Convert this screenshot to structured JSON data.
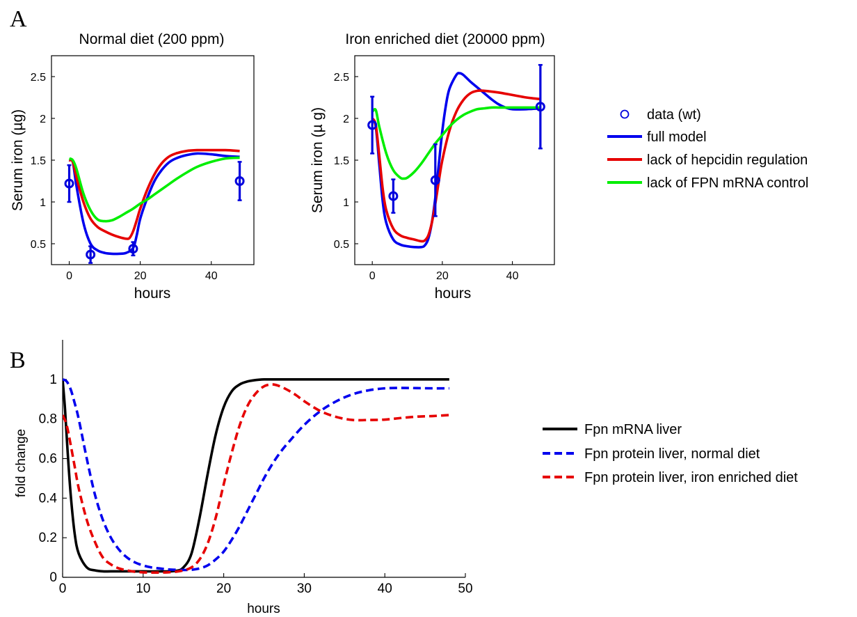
{
  "panel_letters": [
    "A",
    "B"
  ],
  "colors": {
    "data": "#0000dd",
    "full_model": "#0000ee",
    "lack_hepcidin": "#e60000",
    "lack_fpn": "#00ee00",
    "mrna": "#000000",
    "protein_normal": "#0000ee",
    "protein_iron": "#e60000"
  },
  "legend_A": [
    "data (wt)",
    "full model",
    "lack of hepcidin regulation",
    "lack of FPN mRNA control"
  ],
  "legend_B": [
    "Fpn mRNA liver",
    "Fpn protein liver, normal diet",
    "Fpn protein liver, iron enriched diet"
  ],
  "chart_data": [
    {
      "type": "line",
      "panel": "A",
      "title": "Normal diet (200 ppm)",
      "xlabel": "hours",
      "ylabel": "Serum iron (µg)",
      "xlim": [
        -5,
        52
      ],
      "ylim": [
        0.25,
        2.75
      ],
      "xticks": [
        "0",
        "20",
        "40"
      ],
      "xtick_values": [
        0,
        20,
        40
      ],
      "yticks": [
        "0.5",
        "1",
        "1.5",
        "2",
        "2.5"
      ],
      "ytick_values": [
        0.5,
        1,
        1.5,
        2,
        2.5
      ],
      "grid": false,
      "series": [
        {
          "name": "data (wt)",
          "kind": "errorbar",
          "x": [
            0,
            6,
            18,
            48
          ],
          "y": [
            1.22,
            0.37,
            0.44,
            1.25
          ],
          "err": [
            0.22,
            0.1,
            0.08,
            0.23
          ]
        },
        {
          "name": "full model",
          "kind": "line",
          "x": [
            0,
            1,
            2,
            4,
            6,
            8,
            10,
            12,
            14,
            16,
            18,
            19,
            20,
            22,
            24,
            26,
            28,
            30,
            33,
            36,
            40,
            44,
            48
          ],
          "y": [
            1.5,
            1.48,
            1.2,
            0.75,
            0.5,
            0.42,
            0.39,
            0.38,
            0.38,
            0.39,
            0.45,
            0.6,
            0.8,
            1.05,
            1.25,
            1.38,
            1.47,
            1.52,
            1.56,
            1.58,
            1.57,
            1.55,
            1.54
          ]
        },
        {
          "name": "lack of hepcidin regulation",
          "kind": "line",
          "x": [
            0,
            1,
            2,
            4,
            6,
            8,
            10,
            12,
            14,
            16,
            17,
            18,
            19,
            20,
            22,
            24,
            26,
            28,
            30,
            33,
            36,
            40,
            44,
            48
          ],
          "y": [
            1.5,
            1.48,
            1.3,
            1.0,
            0.8,
            0.7,
            0.65,
            0.61,
            0.58,
            0.56,
            0.57,
            0.65,
            0.78,
            0.92,
            1.15,
            1.33,
            1.46,
            1.54,
            1.58,
            1.61,
            1.62,
            1.62,
            1.62,
            1.61
          ]
        },
        {
          "name": "lack of FPN mRNA control",
          "kind": "line",
          "x": [
            0,
            1,
            2,
            4,
            6,
            8,
            10,
            12,
            14,
            16,
            18,
            20,
            22,
            24,
            26,
            28,
            30,
            33,
            36,
            40,
            44,
            48
          ],
          "y": [
            1.52,
            1.5,
            1.4,
            1.1,
            0.9,
            0.79,
            0.77,
            0.78,
            0.82,
            0.87,
            0.92,
            0.98,
            1.03,
            1.09,
            1.15,
            1.21,
            1.27,
            1.35,
            1.42,
            1.48,
            1.52,
            1.53
          ]
        }
      ]
    },
    {
      "type": "line",
      "panel": "A",
      "title": "Iron enriched diet (20000 ppm)",
      "xlabel": "hours",
      "ylabel": "Serum iron (µ g)",
      "xlim": [
        -5,
        52
      ],
      "ylim": [
        0.25,
        2.75
      ],
      "xticks": [
        "0",
        "20",
        "40"
      ],
      "xtick_values": [
        0,
        20,
        40
      ],
      "yticks": [
        "0.5",
        "1",
        "1.5",
        "2",
        "2.5"
      ],
      "ytick_values": [
        0.5,
        1,
        1.5,
        2,
        2.5
      ],
      "grid": false,
      "series": [
        {
          "name": "data (wt)",
          "kind": "errorbar",
          "x": [
            0,
            6,
            18,
            48
          ],
          "y": [
            1.92,
            1.07,
            1.26,
            2.14
          ],
          "err": [
            0.34,
            0.2,
            0.43,
            0.5
          ]
        },
        {
          "name": "full model",
          "kind": "line",
          "x": [
            0,
            1,
            2,
            3,
            4,
            6,
            8,
            10,
            12,
            14,
            15,
            16,
            17,
            18,
            19,
            20,
            21,
            22,
            24,
            25,
            26,
            28,
            30,
            32,
            34,
            36,
            38,
            40,
            44,
            48
          ],
          "y": [
            2.0,
            1.9,
            1.45,
            1.0,
            0.75,
            0.55,
            0.49,
            0.47,
            0.46,
            0.46,
            0.48,
            0.56,
            0.75,
            1.05,
            1.45,
            1.85,
            2.15,
            2.35,
            2.52,
            2.54,
            2.52,
            2.44,
            2.37,
            2.3,
            2.23,
            2.17,
            2.13,
            2.11,
            2.11,
            2.12
          ]
        },
        {
          "name": "lack of hepcidin regulation",
          "kind": "line",
          "x": [
            0,
            1,
            2,
            3,
            4,
            6,
            8,
            10,
            12,
            14,
            15,
            16,
            17,
            18,
            19,
            20,
            22,
            24,
            26,
            28,
            30,
            32,
            36,
            40,
            44,
            48
          ],
          "y": [
            2.0,
            1.92,
            1.55,
            1.15,
            0.9,
            0.68,
            0.6,
            0.57,
            0.55,
            0.53,
            0.54,
            0.6,
            0.75,
            0.98,
            1.25,
            1.5,
            1.85,
            2.08,
            2.22,
            2.3,
            2.33,
            2.33,
            2.31,
            2.28,
            2.25,
            2.23
          ]
        },
        {
          "name": "lack of FPN mRNA control",
          "kind": "line",
          "x": [
            0,
            1,
            2,
            4,
            6,
            8,
            9,
            10,
            12,
            14,
            16,
            18,
            20,
            22,
            24,
            26,
            28,
            30,
            32,
            34,
            36,
            38,
            40,
            44,
            48
          ],
          "y": [
            2.08,
            2.1,
            1.9,
            1.58,
            1.38,
            1.29,
            1.28,
            1.29,
            1.36,
            1.46,
            1.58,
            1.7,
            1.8,
            1.9,
            1.98,
            2.04,
            2.08,
            2.11,
            2.12,
            2.13,
            2.13,
            2.13,
            2.13,
            2.13,
            2.13
          ]
        }
      ]
    },
    {
      "type": "line",
      "panel": "B",
      "title": "",
      "xlabel": "hours",
      "ylabel": "fold change",
      "xlim": [
        0,
        50
      ],
      "ylim": [
        0,
        1.2
      ],
      "xticks": [
        "0",
        "10",
        "20",
        "30",
        "40",
        "50"
      ],
      "xtick_values": [
        0,
        10,
        20,
        30,
        40,
        50
      ],
      "yticks": [
        "0",
        "0.2",
        "0.4",
        "0.6",
        "0.8",
        "1"
      ],
      "ytick_values": [
        0,
        0.2,
        0.4,
        0.6,
        0.8,
        1
      ],
      "grid": false,
      "series": [
        {
          "name": "Fpn mRNA liver",
          "kind": "line",
          "dash": false,
          "x": [
            0,
            0.3,
            0.6,
            1,
            1.5,
            2,
            3,
            4,
            5,
            6,
            8,
            10,
            12,
            14,
            15,
            16,
            17,
            18,
            19,
            20,
            21,
            22,
            23,
            24,
            25,
            26,
            28,
            30,
            35,
            40,
            45,
            48
          ],
          "y": [
            1.0,
            0.85,
            0.65,
            0.42,
            0.22,
            0.12,
            0.05,
            0.035,
            0.03,
            0.03,
            0.03,
            0.03,
            0.03,
            0.032,
            0.05,
            0.12,
            0.3,
            0.52,
            0.72,
            0.86,
            0.94,
            0.975,
            0.99,
            0.997,
            1.0,
            1.0,
            1.0,
            1.0,
            1.0,
            1.0,
            1.0,
            1.0
          ]
        },
        {
          "name": "Fpn protein liver, normal diet",
          "kind": "line",
          "dash": true,
          "x": [
            0,
            0.5,
            1,
            1.5,
            2,
            3,
            4,
            5,
            6,
            7,
            8,
            9,
            10,
            11,
            12,
            13,
            14,
            15,
            16,
            17,
            18,
            19,
            20,
            21,
            22,
            23,
            24,
            25,
            26,
            27,
            28,
            30,
            32,
            34,
            36,
            38,
            40,
            42,
            44,
            46,
            48
          ],
          "y": [
            1.0,
            0.99,
            0.95,
            0.88,
            0.8,
            0.6,
            0.42,
            0.29,
            0.2,
            0.14,
            0.1,
            0.075,
            0.06,
            0.05,
            0.045,
            0.04,
            0.038,
            0.037,
            0.038,
            0.045,
            0.06,
            0.09,
            0.13,
            0.19,
            0.26,
            0.34,
            0.42,
            0.5,
            0.57,
            0.63,
            0.68,
            0.77,
            0.84,
            0.89,
            0.925,
            0.945,
            0.955,
            0.957,
            0.956,
            0.955,
            0.955
          ]
        },
        {
          "name": "Fpn protein liver, iron enriched diet",
          "kind": "line",
          "dash": true,
          "x": [
            0,
            0.5,
            1,
            1.5,
            2,
            3,
            4,
            5,
            6,
            7,
            8,
            9,
            10,
            11,
            12,
            13,
            14,
            15,
            16,
            17,
            18,
            19,
            20,
            21,
            22,
            23,
            24,
            25,
            26,
            27,
            28,
            29,
            30,
            32,
            34,
            36,
            38,
            40,
            42,
            44,
            46,
            48
          ],
          "y": [
            0.82,
            0.77,
            0.67,
            0.56,
            0.45,
            0.29,
            0.18,
            0.1,
            0.065,
            0.045,
            0.035,
            0.028,
            0.025,
            0.024,
            0.024,
            0.025,
            0.028,
            0.035,
            0.05,
            0.09,
            0.17,
            0.3,
            0.47,
            0.63,
            0.77,
            0.87,
            0.93,
            0.965,
            0.975,
            0.965,
            0.945,
            0.92,
            0.89,
            0.84,
            0.81,
            0.795,
            0.795,
            0.797,
            0.805,
            0.812,
            0.815,
            0.82
          ]
        }
      ]
    }
  ]
}
